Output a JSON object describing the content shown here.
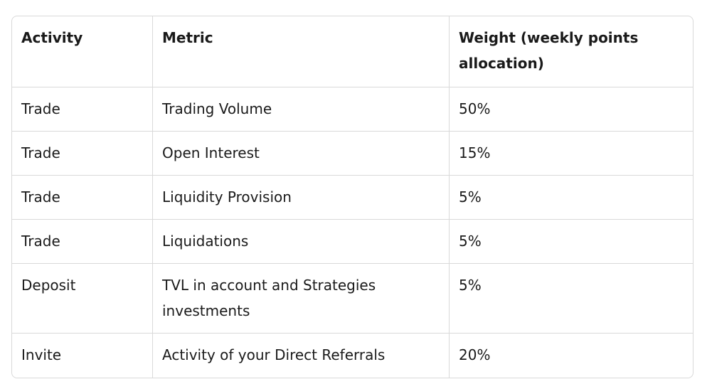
{
  "table": {
    "header": [
      "Activity",
      "Metric",
      "Weight (weekly points allocation)"
    ],
    "rows": [
      [
        "Trade",
        "Trading Volume",
        "50%"
      ],
      [
        "Trade",
        "Open Interest",
        "15%"
      ],
      [
        "Trade",
        "Liquidity Provision",
        "5%"
      ],
      [
        "Trade",
        "Liquidations",
        "5%"
      ],
      [
        "Deposit",
        "TVL in account and Strategies investments",
        "5%"
      ],
      [
        "Invite",
        "Activity of your Direct Referrals",
        "20%"
      ]
    ]
  }
}
